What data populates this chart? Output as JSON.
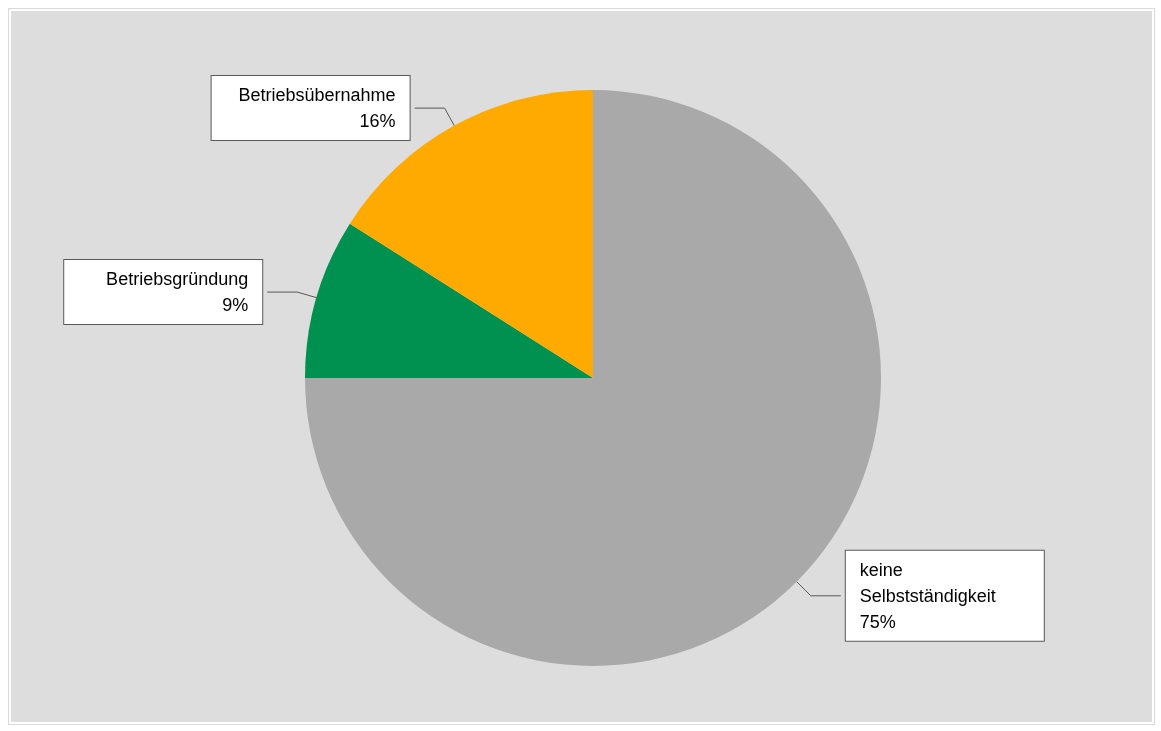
{
  "chart_data": {
    "type": "pie",
    "categories": [
      "keine Selbstständigkeit",
      "Betriebsgründung",
      "Betriebsübernahme"
    ],
    "values": [
      75,
      9,
      16
    ],
    "colors": [
      "#a9a9a9",
      "#009050",
      "#ffaa00"
    ],
    "value_labels": [
      "75%",
      "9%",
      "16%"
    ],
    "legend": false
  }
}
